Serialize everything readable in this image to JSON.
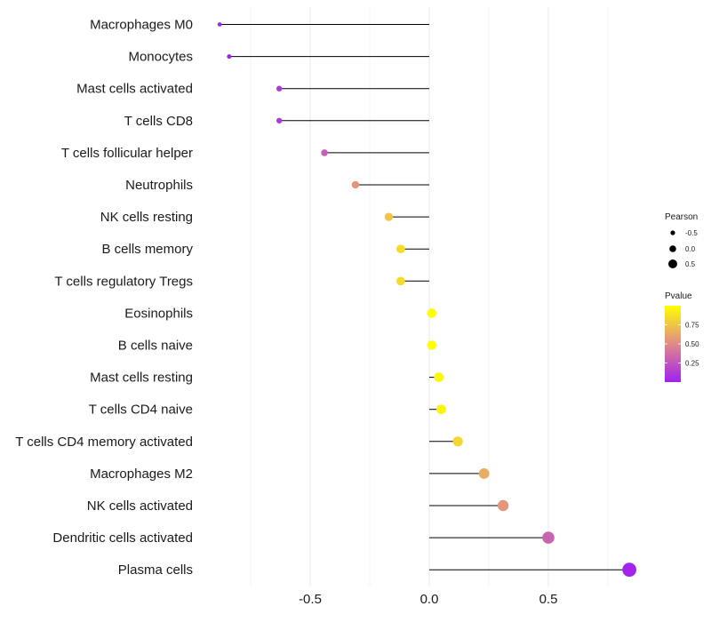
{
  "chart_data": {
    "type": "lollipop",
    "title": "",
    "xlabel": "",
    "ylabel": "",
    "xlim": [
      -1.0,
      0.88
    ],
    "x_ticks": [
      -0.5,
      0.0,
      0.5
    ],
    "x_tick_labels": [
      "-0.5",
      "0.0",
      "0.5"
    ],
    "grid": true,
    "categories": [
      "Macrophages M0",
      "Monocytes",
      "Mast cells activated",
      "T cells CD8",
      "T cells follicular helper",
      "Neutrophils",
      "NK cells resting",
      "B cells memory",
      "T cells regulatory  Tregs ",
      "Eosinophils",
      "B cells naive",
      "Mast cells resting",
      "T cells CD4 naive",
      "T cells CD4 memory activated",
      "Macrophages M2",
      "NK cells activated",
      "Dendritic cells activated",
      "Plasma cells"
    ],
    "values": [
      -0.88,
      -0.84,
      -0.63,
      -0.63,
      -0.44,
      -0.31,
      -0.17,
      -0.12,
      -0.12,
      0.01,
      0.01,
      0.04,
      0.05,
      0.12,
      0.23,
      0.31,
      0.5,
      0.84
    ],
    "pvalues": [
      0.01,
      0.01,
      0.12,
      0.12,
      0.3,
      0.55,
      0.75,
      0.85,
      0.85,
      0.99,
      0.99,
      0.97,
      0.95,
      0.82,
      0.65,
      0.55,
      0.32,
      0.02
    ],
    "size_legend": {
      "title": "Pearson",
      "values": [
        -0.5,
        0.0,
        0.5
      ],
      "labels": [
        "-0.5",
        "0.0",
        "0.5"
      ]
    },
    "color_legend": {
      "title": "Pvalue",
      "ticks": [
        0.25,
        0.5,
        0.75
      ],
      "tick_labels": [
        "0.25",
        "0.50",
        "0.75"
      ],
      "range": [
        0.0,
        1.0
      ],
      "low_color": "#a020f0",
      "mid_color": "#e08a8a",
      "high_color": "#ffff00"
    },
    "stem_color": "#000000",
    "grid_color": "#ebebeb"
  }
}
